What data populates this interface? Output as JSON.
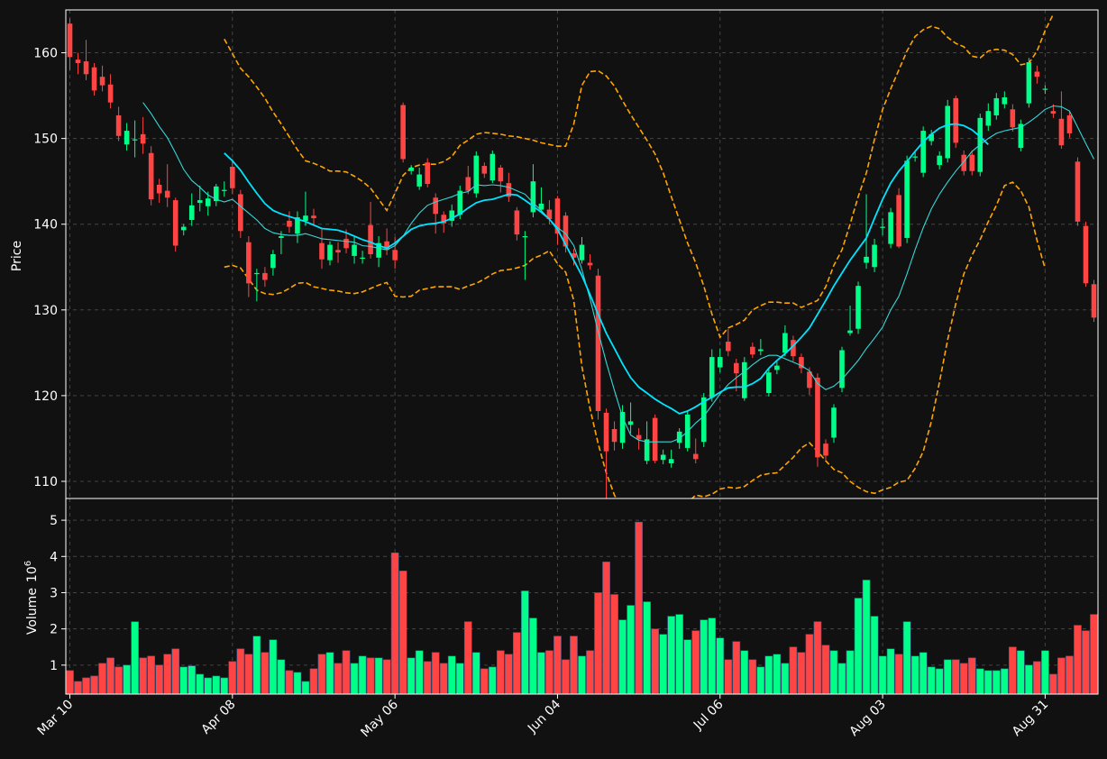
{
  "chart_data": {
    "type": "candlestick",
    "colors": {
      "background": "#111111",
      "up": "#00ff88",
      "down": "#ff4444",
      "ma_fast": "#36d6d6",
      "ma_slow": "#00e5ff",
      "bollinger": "#ffa500",
      "grid": "#444444",
      "axis": "#ffffff"
    },
    "price_panel": {
      "ylabel": "Price",
      "ylim": [
        108,
        165
      ],
      "yticks": [
        110,
        120,
        130,
        140,
        150,
        160
      ]
    },
    "volume_panel": {
      "ylabel": "Volume",
      "ylabel_exp": "10",
      "ylabel_sup": "6",
      "ylim": [
        0.2,
        5.6
      ],
      "yticks": [
        1,
        2,
        3,
        4,
        5
      ]
    },
    "xticks": [
      {
        "index": 0,
        "label": "Mar 10"
      },
      {
        "index": 20,
        "label": "Apr 08"
      },
      {
        "index": 40,
        "label": "May 06"
      },
      {
        "index": 60,
        "label": "Jun 04"
      },
      {
        "index": 80,
        "label": "Jul 06"
      },
      {
        "index": 100,
        "label": "Aug 03"
      },
      {
        "index": 120,
        "label": "Aug 31"
      }
    ],
    "candles": [
      [
        163.4,
        159.5,
        164.0,
        158.0
      ],
      [
        159.2,
        158.8,
        160.0,
        157.5
      ],
      [
        159.0,
        157.5,
        161.5,
        156.8
      ],
      [
        158.3,
        155.6,
        158.8,
        155.0
      ],
      [
        157.2,
        156.2,
        158.5,
        155.5
      ],
      [
        156.3,
        154.2,
        157.5,
        153.5
      ],
      [
        152.7,
        150.3,
        153.7,
        149.7
      ],
      [
        149.3,
        150.9,
        151.8,
        148.6
      ],
      [
        149.9,
        149.9,
        152.1,
        147.8
      ],
      [
        150.5,
        149.4,
        152.5,
        148.2
      ],
      [
        148.3,
        142.9,
        149.1,
        142.2
      ],
      [
        144.6,
        143.6,
        145.3,
        142.5
      ],
      [
        143.9,
        143.1,
        147.0,
        142.0
      ],
      [
        142.8,
        137.5,
        143.1,
        136.8
      ],
      [
        139.3,
        139.7,
        140.0,
        138.7
      ],
      [
        140.5,
        142.2,
        143.6,
        139.8
      ],
      [
        142.5,
        142.8,
        144.5,
        141.5
      ],
      [
        142.1,
        143.0,
        143.8,
        141.0
      ],
      [
        142.7,
        144.4,
        144.7,
        142.1
      ],
      [
        143.9,
        144.0,
        145.0,
        143.2
      ],
      [
        146.7,
        144.2,
        147.6,
        143.5
      ],
      [
        143.5,
        139.2,
        144.0,
        138.4
      ],
      [
        137.9,
        133.1,
        138.6,
        131.5
      ],
      [
        134.2,
        134.3,
        134.8,
        131.0
      ],
      [
        134.3,
        133.5,
        135.0,
        132.7
      ],
      [
        134.9,
        136.5,
        137.0,
        134.0
      ],
      [
        138.4,
        138.6,
        139.2,
        136.5
      ],
      [
        140.4,
        139.7,
        141.5,
        139.0
      ],
      [
        138.9,
        140.8,
        141.5,
        137.8
      ],
      [
        140.4,
        141.0,
        143.8,
        139.8
      ],
      [
        141.0,
        140.7,
        141.8,
        139.8
      ],
      [
        137.8,
        135.9,
        139.4,
        134.8
      ],
      [
        135.8,
        137.6,
        138.0,
        135.2
      ],
      [
        137.0,
        136.7,
        137.9,
        135.5
      ],
      [
        138.3,
        137.2,
        139.4,
        136.6
      ],
      [
        136.3,
        137.6,
        138.5,
        135.4
      ],
      [
        136.0,
        136.1,
        136.9,
        135.4
      ],
      [
        139.9,
        136.5,
        142.6,
        136.0
      ],
      [
        136.1,
        137.8,
        138.6,
        135.0
      ],
      [
        138.0,
        137.0,
        139.5,
        136.4
      ],
      [
        137.0,
        135.8,
        138.5,
        134.8
      ],
      [
        153.9,
        147.6,
        154.2,
        147.2
      ],
      [
        146.2,
        146.6,
        146.9,
        145.8
      ],
      [
        144.4,
        145.8,
        146.6,
        144.0
      ],
      [
        147.2,
        144.7,
        147.7,
        144.3
      ],
      [
        143.1,
        141.2,
        143.6,
        138.9
      ],
      [
        141.1,
        140.1,
        141.5,
        139.0
      ],
      [
        140.4,
        141.6,
        142.3,
        139.7
      ],
      [
        141.1,
        143.9,
        144.5,
        140.6
      ],
      [
        145.5,
        143.9,
        146.8,
        143.5
      ],
      [
        143.6,
        148.0,
        148.5,
        143.1
      ],
      [
        146.8,
        145.9,
        147.2,
        145.4
      ],
      [
        145.1,
        148.2,
        148.6,
        144.8
      ],
      [
        146.6,
        145.0,
        146.9,
        143.7
      ],
      [
        144.8,
        143.2,
        146.0,
        142.6
      ],
      [
        141.6,
        138.8,
        142.0,
        138.1
      ],
      [
        138.5,
        138.6,
        139.2,
        133.5
      ],
      [
        141.4,
        145.0,
        147.0,
        140.8
      ],
      [
        141.7,
        142.4,
        144.3,
        141.5
      ],
      [
        141.7,
        140.6,
        142.8,
        140.0
      ],
      [
        143.0,
        138.9,
        143.3,
        137.6
      ],
      [
        141.0,
        137.4,
        141.4,
        136.7
      ],
      [
        136.6,
        136.1,
        137.1,
        135.2
      ],
      [
        135.8,
        137.6,
        138.5,
        135.4
      ],
      [
        135.5,
        135.2,
        136.5,
        134.7
      ],
      [
        134.0,
        118.2,
        134.8,
        117.2
      ],
      [
        118.0,
        113.5,
        118.5,
        108.0
      ],
      [
        116.1,
        114.6,
        117.0,
        113.6
      ],
      [
        114.5,
        118.1,
        118.9,
        113.8
      ],
      [
        116.6,
        117.0,
        119.2,
        115.6
      ],
      [
        115.4,
        114.9,
        116.2,
        113.7
      ],
      [
        112.4,
        114.9,
        117.0,
        112.0
      ],
      [
        117.4,
        112.4,
        117.8,
        112.1
      ],
      [
        112.5,
        113.1,
        113.7,
        112.0
      ],
      [
        112.1,
        112.6,
        113.7,
        111.6
      ],
      [
        114.5,
        115.8,
        116.2,
        113.8
      ],
      [
        113.9,
        117.8,
        118.3,
        113.5
      ],
      [
        113.2,
        112.6,
        115.0,
        112.1
      ],
      [
        114.6,
        119.8,
        120.3,
        114.0
      ],
      [
        119.8,
        124.5,
        125.4,
        119.3
      ],
      [
        123.3,
        124.5,
        125.5,
        122.7
      ],
      [
        126.3,
        125.2,
        127.8,
        124.6
      ],
      [
        123.8,
        122.6,
        124.3,
        120.5
      ],
      [
        119.7,
        123.9,
        124.5,
        119.4
      ],
      [
        125.7,
        124.8,
        126.2,
        124.4
      ],
      [
        125.2,
        125.4,
        126.6,
        124.7
      ],
      [
        120.3,
        122.7,
        123.2,
        119.9
      ],
      [
        123.0,
        123.5,
        124.0,
        122.5
      ],
      [
        125.0,
        127.3,
        128.2,
        124.6
      ],
      [
        126.5,
        124.6,
        127.0,
        124.0
      ],
      [
        124.5,
        123.2,
        124.9,
        122.6
      ],
      [
        122.8,
        120.9,
        123.3,
        120.1
      ],
      [
        122.1,
        112.8,
        122.6,
        111.7
      ],
      [
        114.4,
        113.0,
        114.9,
        112.5
      ],
      [
        115.1,
        118.6,
        119.0,
        114.5
      ],
      [
        120.9,
        125.3,
        125.7,
        120.4
      ],
      [
        127.3,
        127.6,
        130.5,
        127.0
      ],
      [
        127.8,
        132.8,
        133.3,
        127.2
      ],
      [
        135.5,
        136.2,
        143.5,
        134.8
      ],
      [
        135.0,
        137.6,
        138.3,
        134.4
      ],
      [
        139.7,
        139.7,
        140.7,
        138.7
      ],
      [
        137.7,
        141.4,
        141.9,
        137.2
      ],
      [
        143.4,
        137.4,
        144.2,
        137.2
      ],
      [
        138.4,
        147.4,
        148.0,
        137.8
      ],
      [
        147.9,
        147.9,
        148.4,
        147.3
      ],
      [
        146.0,
        150.9,
        151.4,
        145.5
      ],
      [
        149.7,
        150.5,
        151.0,
        149.2
      ],
      [
        146.9,
        148.0,
        148.5,
        146.4
      ],
      [
        147.7,
        153.8,
        154.5,
        147.2
      ],
      [
        154.7,
        149.5,
        155.0,
        148.9
      ],
      [
        148.1,
        146.2,
        148.6,
        145.7
      ],
      [
        148.1,
        146.2,
        148.6,
        145.7
      ],
      [
        146.1,
        152.4,
        152.9,
        145.6
      ],
      [
        151.5,
        153.2,
        154.1,
        150.9
      ],
      [
        152.7,
        154.7,
        155.3,
        152.2
      ],
      [
        154.0,
        154.8,
        155.5,
        153.5
      ],
      [
        153.4,
        151.3,
        154.0,
        150.8
      ],
      [
        148.9,
        151.7,
        152.2,
        148.5
      ],
      [
        154.1,
        158.9,
        159.4,
        153.6
      ],
      [
        157.8,
        157.2,
        158.5,
        156.4
      ],
      [
        155.7,
        155.8,
        156.2,
        155.2
      ],
      [
        153.2,
        152.9,
        154.0,
        152.4
      ],
      [
        152.3,
        149.2,
        155.5,
        148.8
      ],
      [
        152.7,
        150.6,
        153.2,
        150.1
      ],
      [
        147.3,
        140.3,
        147.8,
        139.8
      ],
      [
        139.8,
        133.1,
        140.3,
        132.7
      ],
      [
        133.0,
        129.1,
        133.5,
        128.6
      ]
    ],
    "volume": [
      0.85,
      0.55,
      0.65,
      0.7,
      1.05,
      1.2,
      0.95,
      1.0,
      2.2,
      1.2,
      1.25,
      1.0,
      1.3,
      1.45,
      0.95,
      0.98,
      0.75,
      0.65,
      0.7,
      0.65,
      1.1,
      1.45,
      1.3,
      1.8,
      1.35,
      1.7,
      1.15,
      0.85,
      0.8,
      0.55,
      0.9,
      1.3,
      1.35,
      1.05,
      1.4,
      1.05,
      1.25,
      1.2,
      1.2,
      1.15,
      4.1,
      3.6,
      1.2,
      1.4,
      1.1,
      1.35,
      1.05,
      1.25,
      1.05,
      2.2,
      1.35,
      0.9,
      0.95,
      1.4,
      1.3,
      1.9,
      3.05,
      2.3,
      1.35,
      1.4,
      1.8,
      1.15,
      1.8,
      1.25,
      1.4,
      3.0,
      3.85,
      2.95,
      2.25,
      2.65,
      4.95,
      2.75,
      2.0,
      1.85,
      2.35,
      2.4,
      1.7,
      1.95,
      2.25,
      2.3,
      1.75,
      1.15,
      1.65,
      1.4,
      1.15,
      0.95,
      1.25,
      1.3,
      1.05,
      1.5,
      1.35,
      1.85,
      2.2,
      1.55,
      1.4,
      1.05,
      1.4,
      2.85,
      3.35,
      2.35,
      1.25,
      1.45,
      1.3,
      2.2,
      1.25,
      1.35,
      0.95,
      0.9,
      1.15,
      1.15,
      1.05,
      1.2,
      0.9,
      0.85,
      0.85,
      0.9,
      1.5,
      1.4,
      1.0,
      1.1,
      1.4,
      0.75,
      1.2,
      1.25,
      2.1,
      1.95,
      2.4
    ],
    "ma_fast": [
      null,
      null,
      null,
      null,
      null,
      null,
      null,
      null,
      null,
      154.2,
      152.9,
      151.4,
      150.1,
      148.3,
      146.4,
      145.1,
      144.3,
      143.4,
      142.9,
      142.6,
      142.9,
      142.1,
      141.3,
      140.5,
      139.5,
      139.0,
      138.8,
      138.7,
      138.7,
      138.9,
      138.6,
      138.3,
      138.2,
      138.1,
      138.0,
      137.9,
      137.5,
      137.4,
      137.2,
      137.0,
      137.5,
      138.6,
      140.1,
      141.3,
      142.2,
      142.6,
      142.9,
      143.2,
      143.6,
      143.8,
      144.6,
      144.5,
      144.6,
      144.5,
      144.3,
      143.9,
      143.5,
      142.5,
      141.6,
      140.6,
      139.6,
      138.9,
      137.5,
      134.7,
      131.3,
      127.5,
      123.9,
      120.6,
      117.5,
      115.4,
      114.8,
      114.6,
      114.6,
      114.6,
      114.6,
      115.0,
      115.8,
      116.8,
      117.6,
      118.9,
      120.2,
      121.3,
      122.1,
      122.8,
      123.6,
      124.3,
      124.7,
      124.7,
      124.3,
      123.9,
      123.5,
      122.9,
      121.4,
      120.7,
      121.1,
      121.9,
      123.0,
      124.1,
      125.5,
      126.7,
      128.0,
      130.0,
      131.6,
      134.2,
      137.0,
      139.6,
      141.8,
      143.5,
      144.9,
      146.2,
      147.3,
      148.5,
      149.3,
      150.0,
      150.6,
      150.9,
      151.1,
      151.3,
      151.9,
      152.6,
      153.4,
      153.8,
      153.7,
      153.2,
      151.3,
      149.4,
      147.6
    ],
    "ma_slow": [
      null,
      null,
      null,
      null,
      null,
      null,
      null,
      null,
      null,
      null,
      null,
      null,
      null,
      null,
      null,
      null,
      null,
      null,
      null,
      148.3,
      147.4,
      146.3,
      144.9,
      143.6,
      142.4,
      141.6,
      141.2,
      140.9,
      140.6,
      140.3,
      139.9,
      139.5,
      139.4,
      139.3,
      139.0,
      138.6,
      138.2,
      137.9,
      137.5,
      137.2,
      137.8,
      138.6,
      139.4,
      139.8,
      140.0,
      140.1,
      140.3,
      140.7,
      141.2,
      141.9,
      142.5,
      142.8,
      142.9,
      143.2,
      143.5,
      143.4,
      142.8,
      142.1,
      141.4,
      140.6,
      139.4,
      137.6,
      135.8,
      134.0,
      131.8,
      129.5,
      127.3,
      125.5,
      123.7,
      122.1,
      121.0,
      120.3,
      119.6,
      119.0,
      118.5,
      117.9,
      118.2,
      118.7,
      119.3,
      119.8,
      120.4,
      120.9,
      121.0,
      121.0,
      121.4,
      122.0,
      123.2,
      124.1,
      124.9,
      125.8,
      126.8,
      127.9,
      129.5,
      131.1,
      132.8,
      134.3,
      135.8,
      137.1,
      138.4,
      140.7,
      142.9,
      144.8,
      146.2,
      147.3,
      148.5,
      149.6,
      150.5,
      151.2,
      151.6,
      151.7,
      151.5,
      151.0,
      150.2,
      149.3
    ],
    "bb_upper": [
      null,
      null,
      null,
      null,
      null,
      null,
      null,
      null,
      null,
      null,
      null,
      null,
      null,
      null,
      null,
      null,
      null,
      null,
      null,
      161.6,
      159.9,
      158.2,
      157.2,
      156.0,
      154.7,
      153.1,
      151.7,
      150.2,
      148.7,
      147.4,
      147.1,
      146.7,
      146.2,
      146.2,
      146.1,
      145.6,
      145.0,
      144.2,
      142.9,
      141.6,
      143.6,
      145.7,
      146.6,
      146.9,
      147.0,
      147.0,
      147.3,
      147.9,
      149.2,
      149.8,
      150.5,
      150.7,
      150.6,
      150.5,
      150.3,
      150.2,
      150.0,
      149.8,
      149.5,
      149.3,
      149.1,
      149.1,
      151.7,
      156.2,
      157.8,
      157.9,
      157.3,
      156.1,
      154.4,
      152.8,
      151.3,
      149.8,
      148.2,
      146.0,
      143.2,
      140.5,
      137.8,
      135.5,
      132.8,
      129.5,
      126.8,
      127.9,
      128.3,
      128.8,
      130.0,
      130.5,
      130.9,
      130.9,
      130.8,
      130.8,
      130.3,
      130.7,
      131.1,
      132.7,
      135.2,
      137.0,
      140.0,
      143.2,
      146.0,
      149.9,
      153.4,
      155.8,
      158.0,
      160.2,
      161.9,
      162.7,
      163.1,
      162.8,
      161.8,
      161.1,
      160.7,
      159.6,
      159.4,
      160.2,
      160.4,
      160.3,
      159.8,
      158.6,
      158.8,
      160.2,
      162.6,
      164.5
    ],
    "bb_lower": [
      null,
      null,
      null,
      null,
      null,
      null,
      null,
      null,
      null,
      null,
      null,
      null,
      null,
      null,
      null,
      null,
      null,
      null,
      null,
      135.0,
      135.2,
      134.9,
      133.6,
      132.3,
      131.9,
      131.8,
      132.0,
      132.5,
      133.1,
      133.2,
      132.7,
      132.5,
      132.3,
      132.2,
      132.0,
      131.9,
      132.1,
      132.5,
      132.9,
      133.2,
      131.6,
      131.5,
      131.6,
      132.3,
      132.5,
      132.7,
      132.7,
      132.7,
      132.4,
      132.8,
      133.1,
      133.6,
      134.2,
      134.6,
      134.7,
      134.9,
      135.2,
      136.0,
      136.4,
      136.9,
      135.4,
      134.4,
      131.1,
      123.4,
      118.5,
      114.4,
      111.0,
      108.4,
      106.4,
      104.5,
      103.0,
      102.5,
      102.8,
      104.1,
      105.5,
      106.5,
      107.5,
      108.4,
      108.2,
      108.5,
      109.1,
      109.3,
      109.2,
      109.4,
      110.1,
      110.7,
      110.9,
      111.0,
      111.9,
      112.8,
      113.9,
      114.5,
      113.5,
      112.4,
      111.4,
      111.0,
      110.0,
      109.3,
      108.8,
      108.6,
      109.0,
      109.3,
      109.9,
      110.1,
      111.5,
      113.5,
      117.0,
      121.6,
      126.5,
      130.7,
      134.2,
      136.4,
      138.2,
      140.3,
      142.2,
      144.5,
      144.9,
      143.9,
      142.0,
      138.1,
      134.8
    ]
  }
}
